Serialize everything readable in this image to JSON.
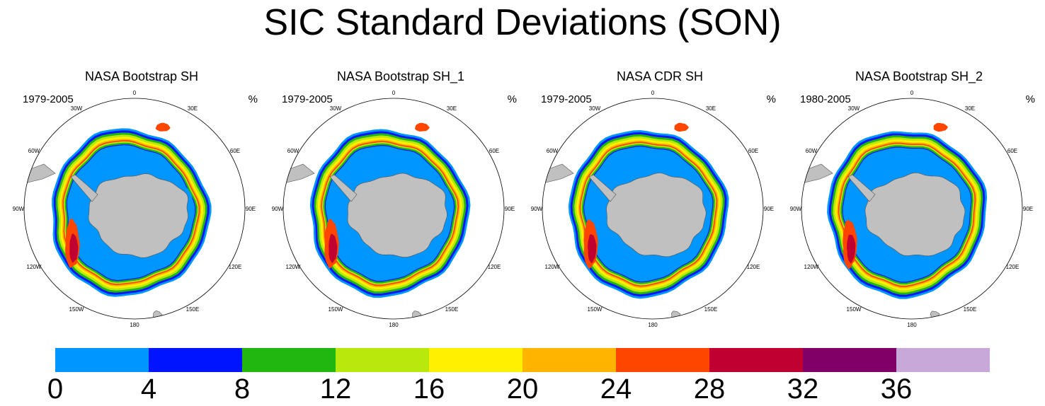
{
  "title": "SIC Standard Deviations (SON)",
  "panels": [
    {
      "title": "NASA Bootstrap SH",
      "years": "1979-2005",
      "unit": "%"
    },
    {
      "title": "NASA Bootstrap SH_1",
      "years": "1979-2005",
      "unit": "%"
    },
    {
      "title": "NASA CDR SH",
      "years": "1979-2005",
      "unit": "%"
    },
    {
      "title": "NASA Bootstrap SH_2",
      "years": "1980-2005",
      "unit": "%"
    }
  ],
  "longitude_labels": [
    "0",
    "30E",
    "60E",
    "90E",
    "120E",
    "150E",
    "180",
    "150W",
    "120W",
    "90W",
    "60W",
    "30W"
  ],
  "colorbar": {
    "colors": [
      "#0096ff",
      "#0014ff",
      "#22b710",
      "#b8e80c",
      "#fff000",
      "#ffb400",
      "#ff4600",
      "#c00030",
      "#800068",
      "#c8a8d8"
    ],
    "labels": [
      "0",
      "4",
      "8",
      "12",
      "16",
      "20",
      "24",
      "28",
      "32",
      "36"
    ]
  },
  "land_color": "#c0c0c0"
}
